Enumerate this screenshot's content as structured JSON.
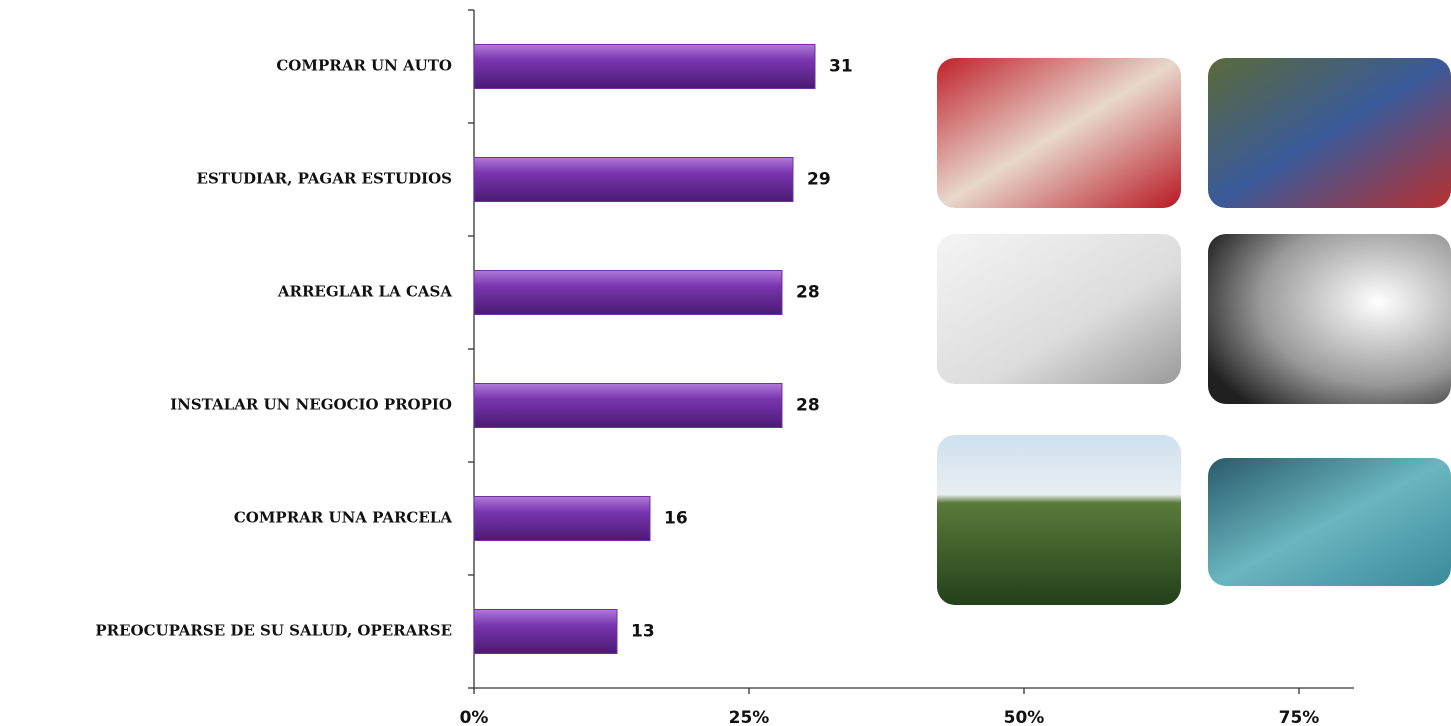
{
  "chart_data": {
    "type": "barh",
    "categories": [
      "COMPRAR UN AUTO",
      "ESTUDIAR, PAGAR ESTUDIOS",
      "ARREGLAR LA CASA",
      "INSTALAR UN NEGOCIO PROPIO",
      "COMPRAR UNA PARCELA",
      "PREOCUPARSE DE SU SALUD, OPERARSE"
    ],
    "values": [
      31,
      29,
      28,
      28,
      16,
      13
    ],
    "color": "#7030a0",
    "xlim": [
      0,
      80
    ],
    "xticks": [
      {
        "value": 0,
        "label": "0%"
      },
      {
        "value": 25,
        "label": "25%"
      },
      {
        "value": 50,
        "label": "50%"
      },
      {
        "value": 75,
        "label": "75%"
      }
    ]
  }
}
